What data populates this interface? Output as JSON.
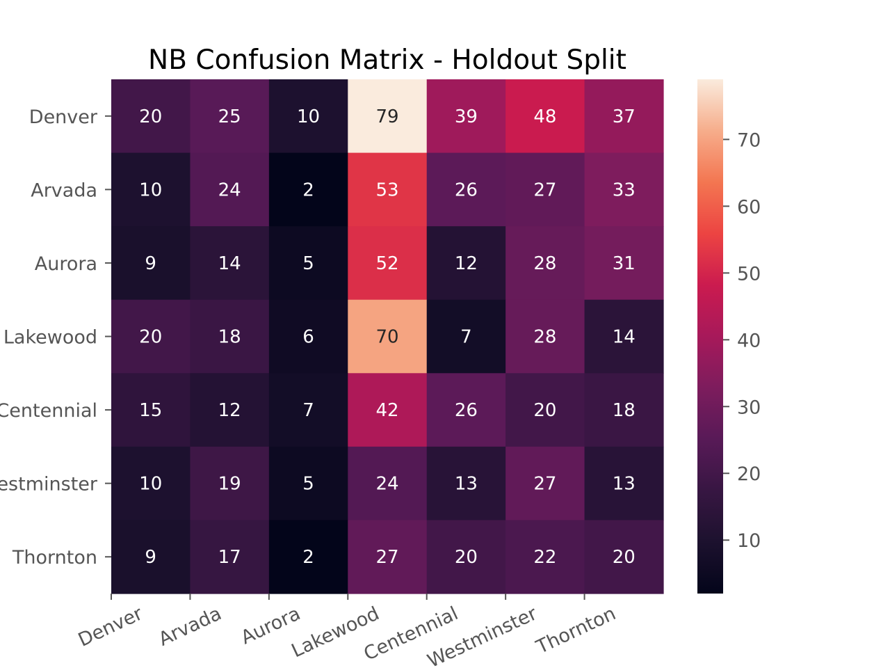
{
  "chart_data": {
    "type": "heatmap",
    "title": "NB Confusion Matrix - Holdout Split",
    "xlabel": "",
    "ylabel": "",
    "x_categories": [
      "Denver",
      "Arvada",
      "Aurora",
      "Lakewood",
      "Centennial",
      "Westminster",
      "Thornton"
    ],
    "y_categories": [
      "Denver",
      "Arvada",
      "Aurora",
      "Lakewood",
      "Centennial",
      "Westminster",
      "Thornton"
    ],
    "values": [
      [
        20,
        25,
        10,
        79,
        39,
        48,
        37
      ],
      [
        10,
        24,
        2,
        53,
        26,
        27,
        33
      ],
      [
        9,
        14,
        5,
        52,
        12,
        28,
        31
      ],
      [
        20,
        18,
        6,
        70,
        7,
        28,
        14
      ],
      [
        15,
        12,
        7,
        42,
        26,
        20,
        18
      ],
      [
        10,
        19,
        5,
        24,
        13,
        27,
        13
      ],
      [
        9,
        17,
        2,
        27,
        20,
        22,
        20
      ]
    ],
    "colorbar": {
      "min": 2,
      "max": 79,
      "ticks": [
        10,
        20,
        30,
        40,
        50,
        60,
        70
      ],
      "colormap": "rocket"
    },
    "x_tick_rotation_deg": 25
  }
}
